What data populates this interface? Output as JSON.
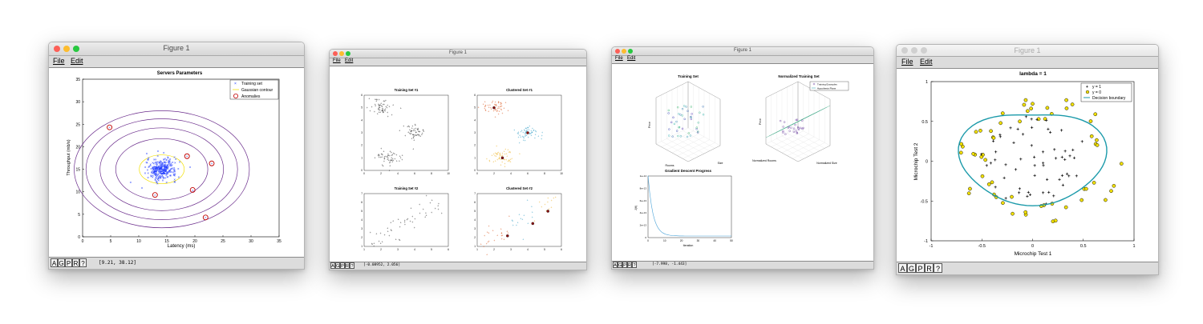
{
  "windows": [
    {
      "title": "Figure 1",
      "menu": [
        "File",
        "Edit"
      ],
      "toolbar": [
        "A",
        "G",
        "P",
        "R",
        "?"
      ],
      "coords": "[9.21, 38.12]",
      "plot": {
        "title": "Servers Parameters",
        "xlabel": "Latency (ms)",
        "ylabel": "Throughput (mb/s)",
        "xticks": [
          "0",
          "5",
          "10",
          "15",
          "20",
          "25",
          "30",
          "35"
        ],
        "yticks": [
          "0",
          "5",
          "10",
          "15",
          "20",
          "25",
          "30",
          "35"
        ],
        "legend": [
          "Training set",
          "Gaussian contour",
          "Anomalies"
        ]
      }
    },
    {
      "title": "Figure 1",
      "menu": [
        "File",
        "Edit"
      ],
      "toolbar": [
        "A",
        "G",
        "P",
        "R",
        "?"
      ],
      "coords": "[-0.08952, 2.056]",
      "subplots": [
        "Training Set #1",
        "Clustered Set #1",
        "Training Set #2",
        "Clustered Set #2"
      ]
    },
    {
      "title": "Figure 1",
      "menu": [
        "File",
        "Edit"
      ],
      "toolbar": [
        "A",
        "G",
        "P",
        "R",
        "?"
      ],
      "coords": "[-7.998, -1.443]",
      "subplots": [
        "Training Set",
        "Normalized Training Set",
        "Gradient Descent Progress"
      ],
      "legend": [
        "Training Examples",
        "Hypothesis Plane"
      ],
      "labels": {
        "rooms": "Rooms",
        "size": "Size",
        "price": "Price",
        "normRooms": "Normalized Rooms",
        "normSize": "Normalized Size",
        "iteration": "Iteration",
        "jtheta": "J(θ)"
      }
    },
    {
      "title": "Figure 1",
      "menu": [
        "File",
        "Edit"
      ],
      "toolbar": [
        "A",
        "G",
        "P",
        "R",
        "?"
      ],
      "plot": {
        "title": "lambda = 1",
        "xlabel": "Microchip Test 1",
        "ylabel": "Microchip Test 2",
        "xticks": [
          "-1",
          "-0.5",
          "0",
          "0.5",
          "1"
        ],
        "yticks": [
          "-1",
          "-0.5",
          "0",
          "0.5",
          "1"
        ],
        "legend": [
          "y = 1",
          "y = 0",
          "Decision boundary"
        ]
      }
    }
  ],
  "colors": {
    "boundary": "#1b9aaa",
    "yellow": "#f2e000",
    "anomaly": "#c00000",
    "contour": "#6b2d8c",
    "blue": "#1f3bff"
  }
}
